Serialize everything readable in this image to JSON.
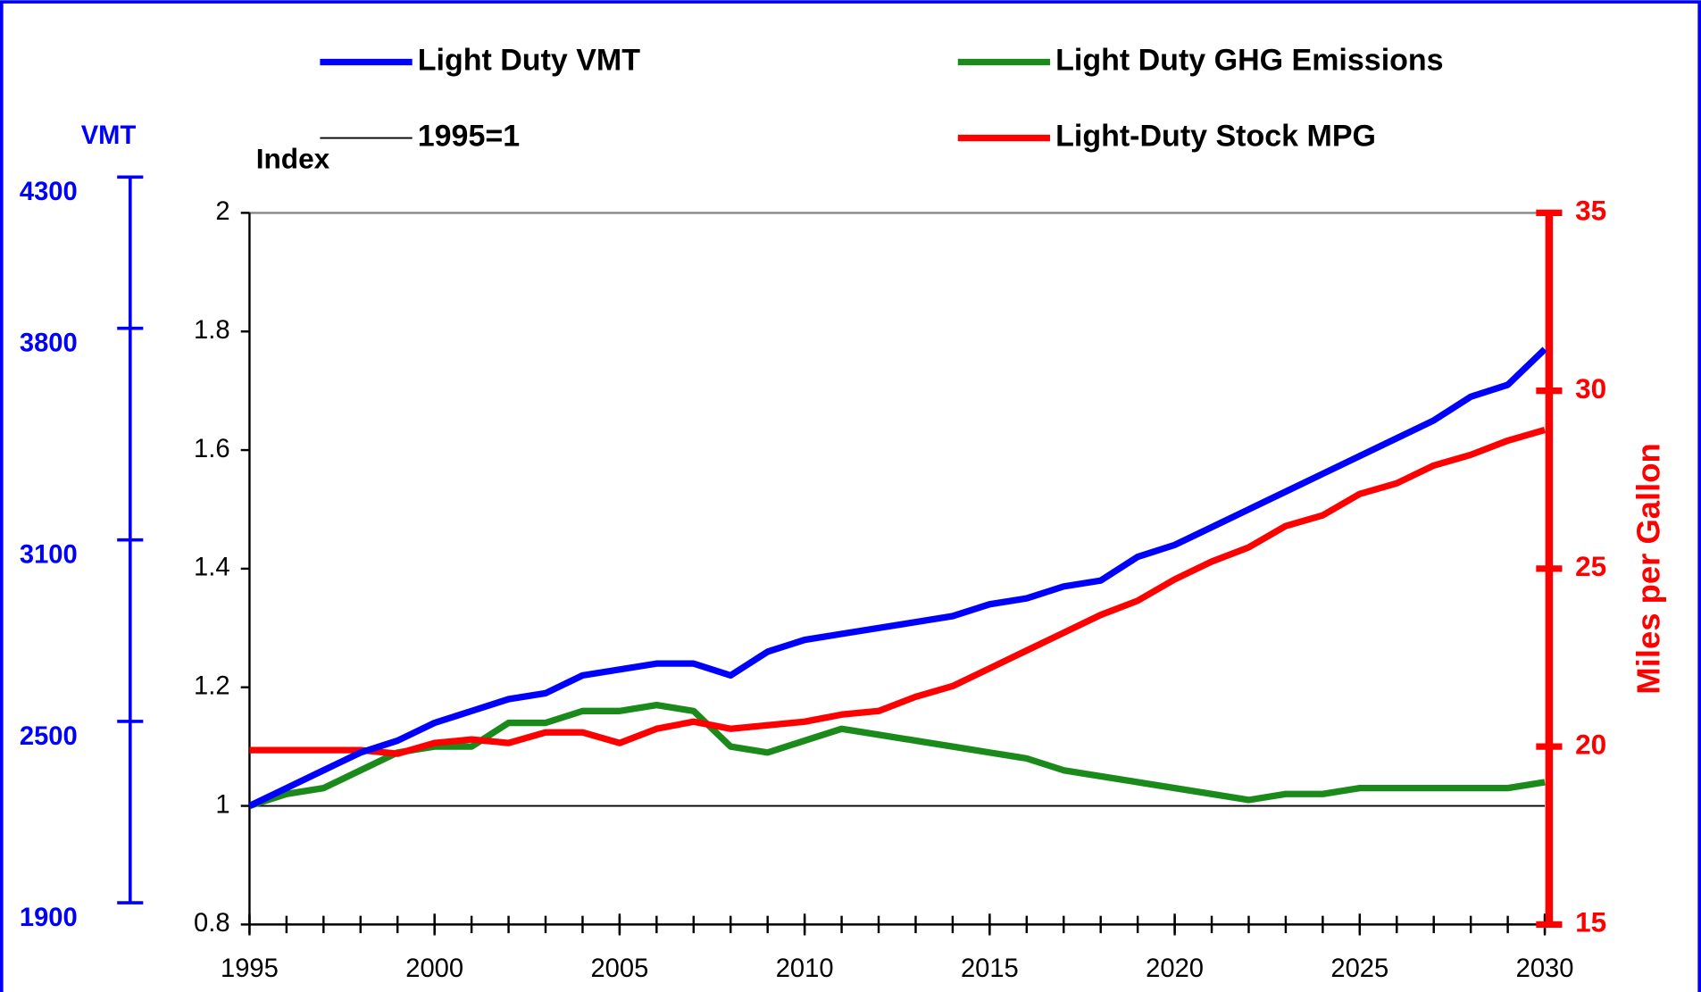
{
  "chart_data": {
    "type": "line",
    "x": [
      1995,
      1996,
      1997,
      1998,
      1999,
      2000,
      2001,
      2002,
      2003,
      2004,
      2005,
      2006,
      2007,
      2008,
      2009,
      2010,
      2011,
      2012,
      2013,
      2014,
      2015,
      2016,
      2017,
      2018,
      2019,
      2020,
      2021,
      2022,
      2023,
      2024,
      2025,
      2026,
      2027,
      2028,
      2029,
      2030
    ],
    "xlim": [
      1995,
      2030
    ],
    "xticks": [
      1995,
      2000,
      2005,
      2010,
      2015,
      2020,
      2025,
      2030
    ],
    "ylabel": "Index",
    "ylim": [
      0.8,
      2
    ],
    "yticks": [
      0.8,
      1,
      1.2,
      1.4,
      1.6,
      1.8,
      2
    ],
    "y2label": "Miles per Gallon",
    "y2lim": [
      15,
      35
    ],
    "y2ticks": [
      15,
      20,
      25,
      30,
      35
    ],
    "y3label": "VMT",
    "y3lim": [
      1900,
      4300
    ],
    "y3ticks": [
      1900,
      2500,
      3100,
      3800,
      4300
    ],
    "series": [
      {
        "name": "Light Duty VMT",
        "color": "#0000ff",
        "values": [
          1.0,
          1.03,
          1.06,
          1.09,
          1.11,
          1.14,
          1.16,
          1.18,
          1.19,
          1.22,
          1.23,
          1.24,
          1.24,
          1.22,
          1.26,
          1.28,
          1.29,
          1.3,
          1.31,
          1.32,
          1.34,
          1.35,
          1.37,
          1.38,
          1.42,
          1.44,
          1.47,
          1.5,
          1.53,
          1.56,
          1.59,
          1.62,
          1.65,
          1.69,
          1.71,
          1.77
        ]
      },
      {
        "name": "Light Duty GHG Emissions",
        "color": "#1a8a1a",
        "values": [
          1.0,
          1.02,
          1.03,
          1.06,
          1.09,
          1.1,
          1.1,
          1.14,
          1.14,
          1.16,
          1.16,
          1.17,
          1.16,
          1.1,
          1.09,
          1.11,
          1.13,
          1.12,
          1.11,
          1.1,
          1.09,
          1.08,
          1.06,
          1.05,
          1.04,
          1.03,
          1.02,
          1.01,
          1.02,
          1.02,
          1.03,
          1.03,
          1.03,
          1.03,
          1.03,
          1.04
        ]
      },
      {
        "name": "1995=1",
        "color": "#000000",
        "values": [
          1,
          1,
          1,
          1,
          1,
          1,
          1,
          1,
          1,
          1,
          1,
          1,
          1,
          1,
          1,
          1,
          1,
          1,
          1,
          1,
          1,
          1,
          1,
          1,
          1,
          1,
          1,
          1,
          1,
          1,
          1,
          1,
          1,
          1,
          1,
          1
        ]
      },
      {
        "name": "Light-Duty Stock MPG",
        "color": "#ff0000",
        "axis": "y2",
        "values": [
          19.9,
          19.9,
          19.9,
          19.9,
          19.8,
          20.1,
          20.2,
          20.1,
          20.4,
          20.4,
          20.1,
          20.5,
          20.7,
          20.5,
          20.6,
          20.7,
          20.9,
          21.0,
          21.4,
          21.7,
          22.2,
          22.7,
          23.2,
          23.7,
          24.1,
          24.7,
          25.2,
          25.6,
          26.2,
          26.5,
          27.1,
          27.4,
          27.9,
          28.2,
          28.6,
          28.9
        ]
      }
    ]
  }
}
